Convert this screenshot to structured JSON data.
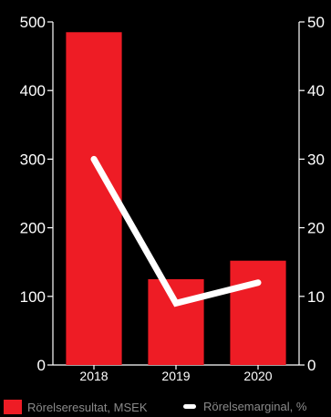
{
  "chart_data": {
    "type": "bar",
    "categories": [
      "2018",
      "2019",
      "2020"
    ],
    "series": [
      {
        "name": "Rörelseresultat, MSEK",
        "type": "bar",
        "axis": "left",
        "values": [
          485,
          125,
          152
        ],
        "color": "#ee1c25"
      },
      {
        "name": "Rörelsemarginal, %",
        "type": "line",
        "axis": "right",
        "values": [
          30,
          9,
          12
        ],
        "color": "#ffffff"
      }
    ],
    "y_left": {
      "min": 0,
      "max": 500,
      "ticks": [
        0,
        100,
        200,
        300,
        400,
        500
      ]
    },
    "y_right": {
      "min": 0,
      "max": 50,
      "ticks": [
        0,
        10,
        20,
        30,
        40,
        50
      ]
    },
    "title": "",
    "xlabel": "",
    "ylabel": "",
    "grid": false,
    "legend_position": "bottom",
    "colors": {
      "background": "#000000",
      "bar": "#ee1c25",
      "line": "#ffffff",
      "axis": "#ffffff",
      "legend_text": "#8a8a8a"
    }
  },
  "legend": {
    "bar_label": "Rörelseresultat, MSEK",
    "line_label": "Rörelsemarginal, %"
  }
}
